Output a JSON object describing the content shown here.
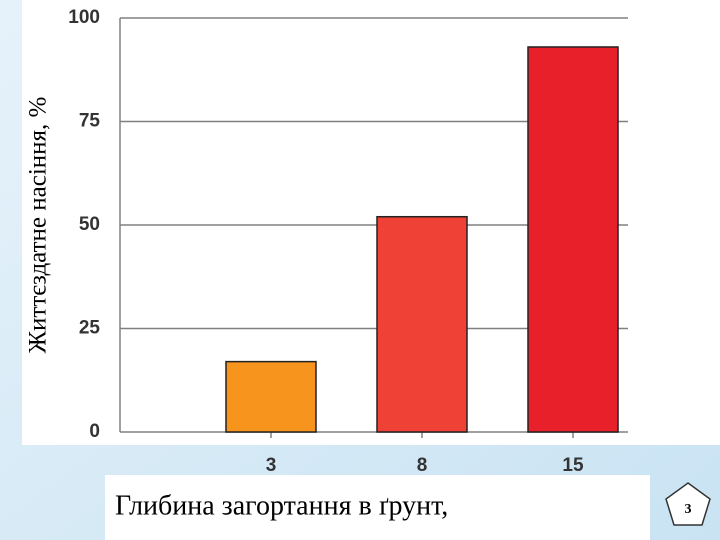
{
  "chart_data": {
    "type": "bar",
    "y_axis_label": "Життєздатне насіння, %",
    "x_axis_label": "Глибина загортання в ґрунт,",
    "categories": [
      "3",
      "8",
      "15"
    ],
    "values": [
      17,
      52,
      93
    ],
    "colors": [
      "#f7941d",
      "#ef4136",
      "#e8202a"
    ],
    "ylim": [
      0,
      100
    ],
    "yticks": [
      0,
      25,
      50,
      75,
      100
    ],
    "grid": true
  },
  "slide_number": "3"
}
